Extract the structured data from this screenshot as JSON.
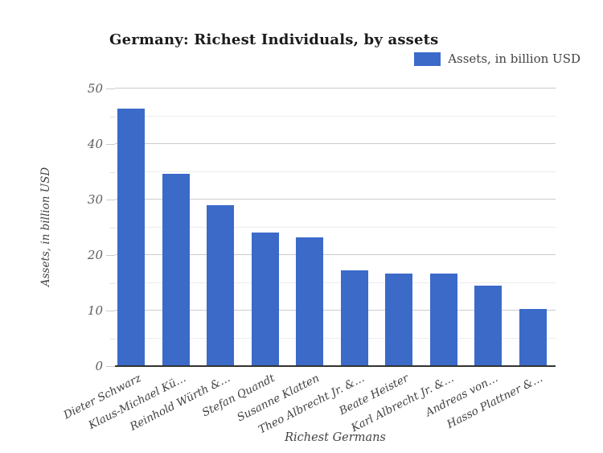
{
  "title": "Germany: Richest Individuals, by assets",
  "legend": {
    "label": "Assets, in billion USD",
    "swatch_color": "#3b6ac9"
  },
  "chart_data": {
    "type": "bar",
    "title": "Germany: Richest Individuals, by assets",
    "categories": [
      "Dieter Schwarz",
      "Klaus-Michael Kü…",
      "Reinhold Würth &…",
      "Stefan Quandt",
      "Susanne Klatten",
      "Theo Albrecht Jr. &…",
      "Beate Heister",
      "Karl Albrecht Jr. &…",
      "Andreas von…",
      "Hasso Plattner &…"
    ],
    "series": [
      {
        "name": "Assets, in billion USD",
        "values": [
          46.4,
          34.6,
          29.0,
          24.1,
          23.2,
          17.3,
          16.6,
          16.6,
          14.5,
          10.3
        ]
      }
    ],
    "xlabel": "Richest Germans",
    "ylabel": "Assets, in billion USD",
    "ylim": [
      0,
      50
    ],
    "yticks": [
      0,
      10,
      20,
      30,
      40,
      50
    ],
    "y_minor_ticks": [
      5,
      15,
      25,
      35,
      45
    ],
    "grid": "on",
    "legend_position": "top-right",
    "bar_color": "#3b6ac9",
    "axis_color": "#333333",
    "gridline_color": "#cccccc"
  }
}
